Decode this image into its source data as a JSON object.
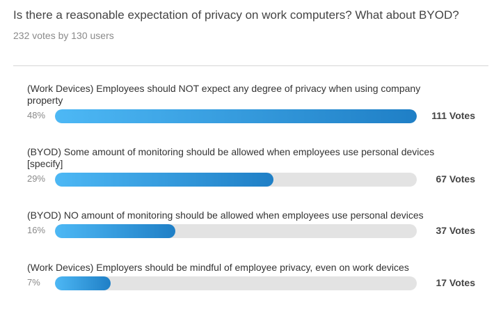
{
  "poll": {
    "question": "Is there a reasonable expectation of privacy on work computers? What about BYOD?",
    "meta": "232 votes by 130 users",
    "accent_start": "#4db8f5",
    "accent_end": "#1f7fc6",
    "track_color": "#e3e3e3",
    "options": [
      {
        "label": "(Work Devices) Employees should NOT expect any degree of privacy when using company property",
        "percent_label": "48%",
        "fill_fraction": 1.0,
        "votes_label": "111 Votes"
      },
      {
        "label": "(BYOD) Some amount of monitoring should be allowed when employees use personal devices [specify]",
        "percent_label": "29%",
        "fill_fraction": 0.604,
        "votes_label": "67 Votes"
      },
      {
        "label": "(BYOD) NO amount of monitoring should be allowed when employees use personal devices",
        "percent_label": "16%",
        "fill_fraction": 0.333,
        "votes_label": "37 Votes"
      },
      {
        "label": "(Work Devices) Employers should be mindful of employee privacy, even on work devices",
        "percent_label": "7%",
        "fill_fraction": 0.153,
        "votes_label": "17 Votes"
      }
    ]
  }
}
